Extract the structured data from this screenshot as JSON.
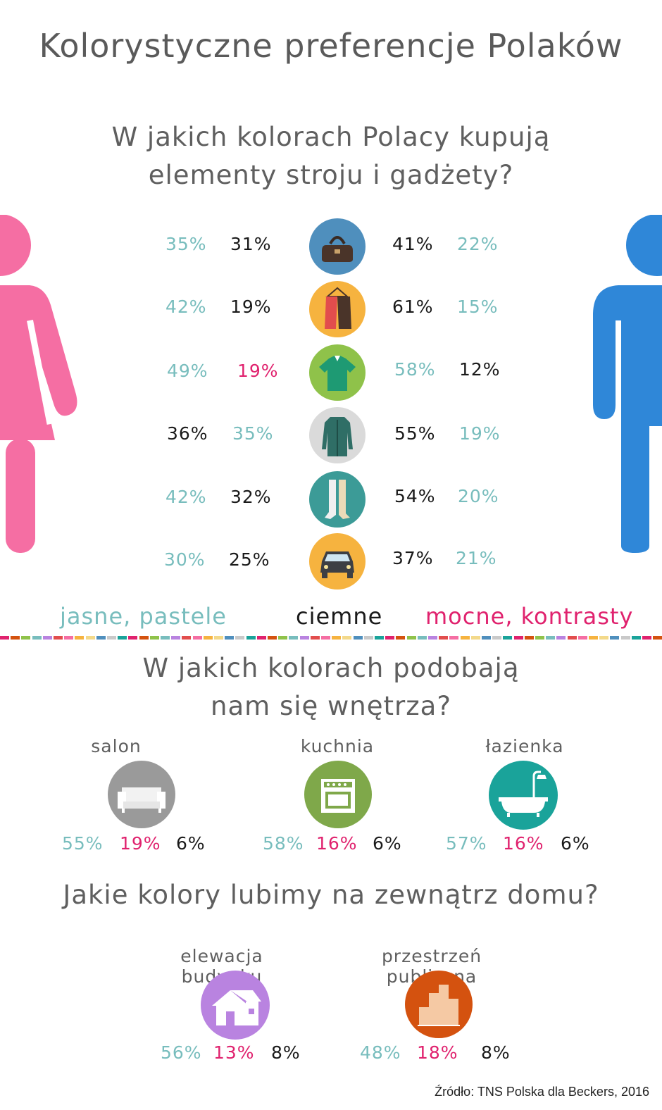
{
  "title": "Kolorystyczne preferencje Polaków",
  "section1": {
    "question_line1": "W jakich kolorach Polacy kupują",
    "question_line2": "elementy stroju i gadżety?",
    "rows": [
      {
        "icon": "handbag-icon",
        "icon_color": "#4f8fbd",
        "w1": "35%",
        "w2": "31%",
        "m1": "41%",
        "m2": "22%"
      },
      {
        "icon": "coat-hanger-icon",
        "icon_color": "#f6b33f",
        "w1": "42%",
        "w2": "19%",
        "m1": "61%",
        "m2": "15%"
      },
      {
        "icon": "shirt-icon",
        "icon_color": "#8fc24a",
        "w1": "49%",
        "w2": "19%",
        "m1": "58%",
        "m2": "12%"
      },
      {
        "icon": "jacket-icon",
        "icon_color": "#dadada",
        "w1": "36%",
        "w2": "35%",
        "m1": "55%",
        "m2": "19%"
      },
      {
        "icon": "socks-icon",
        "icon_color": "#3c9b97",
        "w1": "42%",
        "w2": "32%",
        "m1": "54%",
        "m2": "20%"
      },
      {
        "icon": "car-icon",
        "icon_color": "#f6b33f",
        "w1": "30%",
        "w2": "25%",
        "m1": "37%",
        "m2": "21%"
      }
    ],
    "legend": {
      "light": "jasne, pastele",
      "dark": "ciemne",
      "strong": "mocne, kontrasty"
    }
  },
  "section2": {
    "question_line1": "W jakich kolorach podobają",
    "question_line2": "nam się wnętrza?",
    "rooms": [
      {
        "label": "salon",
        "icon": "sofa-icon",
        "icon_color": "#9a9a9a",
        "light": "55%",
        "strong": "19%",
        "dark": "6%"
      },
      {
        "label": "kuchnia",
        "icon": "stove-icon",
        "icon_color": "#7fa84a",
        "light": "58%",
        "strong": "16%",
        "dark": "6%"
      },
      {
        "label": "łazienka",
        "icon": "bathtub-icon",
        "icon_color": "#1aa39a",
        "light": "57%",
        "strong": "16%",
        "dark": "6%"
      }
    ]
  },
  "section3": {
    "question": "Jakie kolory lubimy na zewnątrz domu?",
    "items": [
      {
        "label": "elewacja budynku",
        "icon": "house-icon",
        "icon_color": "#b983e0",
        "light": "56%",
        "strong": "13%",
        "dark": "8%"
      },
      {
        "label": "przestrzeń publiczna",
        "icon": "buildings-icon",
        "icon_color": "#d4520f",
        "light": "48%",
        "strong": "18%",
        "dark": "8%"
      }
    ]
  },
  "source": "Źródło: TNS Polska dla Beckers, 2016",
  "colors": {
    "light": "#78bdbd",
    "dark": "#1a1a1a",
    "strong": "#e0226e",
    "woman": "#f56ea3",
    "man": "#2f87d8"
  }
}
